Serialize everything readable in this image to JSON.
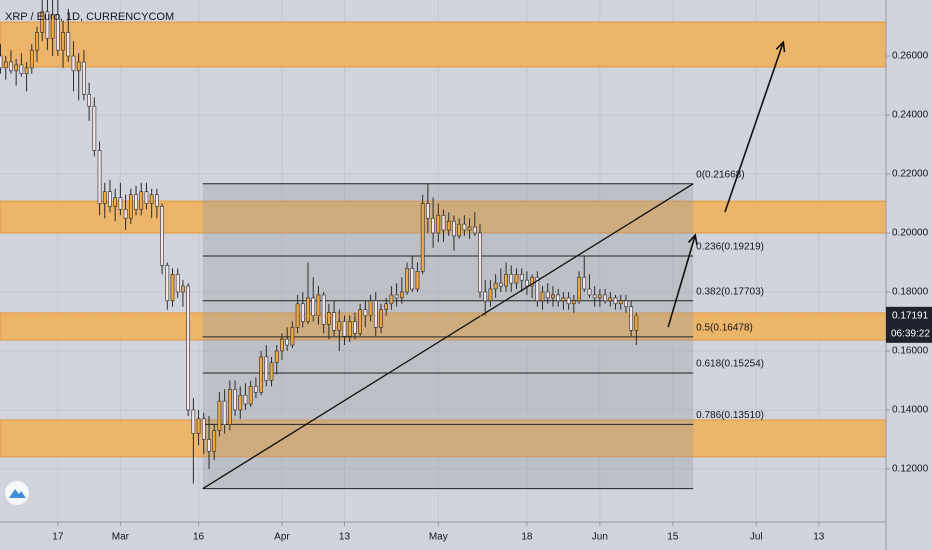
{
  "chart_data": {
    "type": "candlestick",
    "title": "XRP / Euro, 1D, CURRENCYCOM",
    "up_color": "#f2a93b",
    "down_color": "#f4e4ea",
    "wick_color": "#2b2b2b",
    "zone_color": "#f0b25e",
    "xlim": [
      -11.1,
      158.9
    ],
    "ylim": [
      0.102,
      0.279
    ],
    "xticks": [
      {
        "value": 0,
        "label": "17"
      },
      {
        "value": 12,
        "label": "Mar"
      },
      {
        "value": 27,
        "label": "16"
      },
      {
        "value": 43,
        "label": "Apr"
      },
      {
        "value": 55,
        "label": "13"
      },
      {
        "value": 73,
        "label": "May"
      },
      {
        "value": 90,
        "label": "18"
      },
      {
        "value": 104,
        "label": "Jun"
      },
      {
        "value": 118,
        "label": "15"
      },
      {
        "value": 134,
        "label": "Jul"
      },
      {
        "value": 146,
        "label": "13"
      }
    ],
    "yticks": [
      {
        "value": 0.12,
        "label": "0.12000"
      },
      {
        "value": 0.14,
        "label": "0.14000"
      },
      {
        "value": 0.16,
        "label": "0.16000"
      },
      {
        "value": 0.18,
        "label": "0.18000"
      },
      {
        "value": 0.2,
        "label": "0.20000"
      },
      {
        "value": 0.22,
        "label": "0.22000"
      },
      {
        "value": 0.24,
        "label": "0.24000"
      },
      {
        "value": 0.26,
        "label": "0.26000"
      }
    ],
    "grid": true,
    "x": [
      -11,
      -10,
      -9,
      -8,
      -7,
      -6,
      -5,
      -4,
      -3,
      -2,
      -1,
      0,
      1,
      2,
      3,
      4,
      5,
      6,
      7,
      8,
      9,
      10,
      11,
      12,
      13,
      14,
      15,
      16,
      17,
      18,
      19,
      20,
      21,
      22,
      23,
      24,
      25,
      26,
      27,
      28,
      29,
      30,
      31,
      32,
      33,
      34,
      35,
      36,
      37,
      38,
      39,
      40,
      41,
      42,
      43,
      44,
      45,
      46,
      47,
      48,
      49,
      50,
      51,
      52,
      53,
      54,
      55,
      56,
      57,
      58,
      59,
      60,
      61,
      62,
      63,
      64,
      65,
      66,
      67,
      68,
      69,
      70,
      71,
      72,
      73,
      74,
      75,
      76,
      77,
      78,
      79,
      80,
      81,
      82,
      83,
      84,
      85,
      86,
      87,
      88,
      89,
      90,
      91,
      92,
      93,
      94,
      95,
      96,
      97,
      98,
      99,
      100,
      101,
      102,
      103,
      104,
      105,
      106,
      107,
      108,
      109,
      110,
      111
    ],
    "ohlc": [
      [
        0.26,
        0.264,
        0.254,
        0.256
      ],
      [
        0.256,
        0.26,
        0.252,
        0.258
      ],
      [
        0.258,
        0.262,
        0.254,
        0.255
      ],
      [
        0.255,
        0.259,
        0.25,
        0.257
      ],
      [
        0.257,
        0.261,
        0.253,
        0.254
      ],
      [
        0.254,
        0.258,
        0.248,
        0.256
      ],
      [
        0.256,
        0.264,
        0.254,
        0.262
      ],
      [
        0.262,
        0.27,
        0.258,
        0.268
      ],
      [
        0.268,
        0.279,
        0.265,
        0.275
      ],
      [
        0.275,
        0.279,
        0.262,
        0.266
      ],
      [
        0.266,
        0.279,
        0.26,
        0.274
      ],
      [
        0.274,
        0.279,
        0.26,
        0.262
      ],
      [
        0.262,
        0.272,
        0.256,
        0.268
      ],
      [
        0.268,
        0.276,
        0.258,
        0.26
      ],
      [
        0.26,
        0.265,
        0.248,
        0.255
      ],
      [
        0.255,
        0.261,
        0.245,
        0.258
      ],
      [
        0.258,
        0.262,
        0.245,
        0.247
      ],
      [
        0.247,
        0.251,
        0.238,
        0.243
      ],
      [
        0.243,
        0.246,
        0.226,
        0.228
      ],
      [
        0.228,
        0.231,
        0.206,
        0.21
      ],
      [
        0.21,
        0.217,
        0.205,
        0.214
      ],
      [
        0.214,
        0.218,
        0.207,
        0.209
      ],
      [
        0.209,
        0.215,
        0.204,
        0.212
      ],
      [
        0.212,
        0.217,
        0.206,
        0.208
      ],
      [
        0.208,
        0.213,
        0.201,
        0.205
      ],
      [
        0.205,
        0.215,
        0.203,
        0.213
      ],
      [
        0.213,
        0.216,
        0.206,
        0.208
      ],
      [
        0.208,
        0.217,
        0.206,
        0.214
      ],
      [
        0.214,
        0.217,
        0.208,
        0.21
      ],
      [
        0.21,
        0.215,
        0.205,
        0.213
      ],
      [
        0.213,
        0.215,
        0.205,
        0.209
      ],
      [
        0.209,
        0.21,
        0.186,
        0.189
      ],
      [
        0.189,
        0.19,
        0.174,
        0.177
      ],
      [
        0.177,
        0.188,
        0.175,
        0.186
      ],
      [
        0.186,
        0.188,
        0.178,
        0.18
      ],
      [
        0.18,
        0.184,
        0.175,
        0.182
      ],
      [
        0.182,
        0.183,
        0.138,
        0.14
      ],
      [
        0.14,
        0.144,
        0.115,
        0.132
      ],
      [
        0.132,
        0.14,
        0.128,
        0.137
      ],
      [
        0.137,
        0.139,
        0.125,
        0.13
      ],
      [
        0.13,
        0.138,
        0.12,
        0.126
      ],
      [
        0.126,
        0.135,
        0.123,
        0.133
      ],
      [
        0.133,
        0.146,
        0.131,
        0.143
      ],
      [
        0.143,
        0.147,
        0.132,
        0.135
      ],
      [
        0.135,
        0.15,
        0.133,
        0.147
      ],
      [
        0.147,
        0.15,
        0.138,
        0.14
      ],
      [
        0.14,
        0.148,
        0.137,
        0.145
      ],
      [
        0.145,
        0.149,
        0.14,
        0.142
      ],
      [
        0.142,
        0.15,
        0.141,
        0.148
      ],
      [
        0.148,
        0.151,
        0.144,
        0.146
      ],
      [
        0.146,
        0.16,
        0.145,
        0.158
      ],
      [
        0.158,
        0.162,
        0.148,
        0.15
      ],
      [
        0.15,
        0.158,
        0.148,
        0.156
      ],
      [
        0.156,
        0.162,
        0.152,
        0.16
      ],
      [
        0.16,
        0.166,
        0.157,
        0.164
      ],
      [
        0.164,
        0.168,
        0.16,
        0.162
      ],
      [
        0.162,
        0.17,
        0.161,
        0.168
      ],
      [
        0.168,
        0.179,
        0.166,
        0.176
      ],
      [
        0.176,
        0.18,
        0.168,
        0.17
      ],
      [
        0.17,
        0.19,
        0.169,
        0.178
      ],
      [
        0.178,
        0.185,
        0.17,
        0.172
      ],
      [
        0.172,
        0.182,
        0.169,
        0.179
      ],
      [
        0.179,
        0.18,
        0.166,
        0.169
      ],
      [
        0.169,
        0.176,
        0.164,
        0.173
      ],
      [
        0.173,
        0.177,
        0.165,
        0.167
      ],
      [
        0.167,
        0.174,
        0.16,
        0.17
      ],
      [
        0.17,
        0.172,
        0.162,
        0.165
      ],
      [
        0.165,
        0.172,
        0.163,
        0.17
      ],
      [
        0.17,
        0.173,
        0.164,
        0.166
      ],
      [
        0.166,
        0.176,
        0.165,
        0.174
      ],
      [
        0.174,
        0.177,
        0.168,
        0.172
      ],
      [
        0.172,
        0.179,
        0.17,
        0.177
      ],
      [
        0.177,
        0.18,
        0.165,
        0.168
      ],
      [
        0.168,
        0.176,
        0.166,
        0.174
      ],
      [
        0.174,
        0.178,
        0.172,
        0.176
      ],
      [
        0.176,
        0.182,
        0.174,
        0.179
      ],
      [
        0.179,
        0.183,
        0.175,
        0.178
      ],
      [
        0.178,
        0.185,
        0.176,
        0.18
      ],
      [
        0.18,
        0.19,
        0.179,
        0.188
      ],
      [
        0.188,
        0.192,
        0.18,
        0.181
      ],
      [
        0.181,
        0.19,
        0.18,
        0.187
      ],
      [
        0.187,
        0.213,
        0.186,
        0.21
      ],
      [
        0.21,
        0.2167,
        0.2,
        0.205
      ],
      [
        0.205,
        0.212,
        0.195,
        0.2
      ],
      [
        0.2,
        0.21,
        0.197,
        0.206
      ],
      [
        0.206,
        0.208,
        0.197,
        0.201
      ],
      [
        0.201,
        0.207,
        0.199,
        0.204
      ],
      [
        0.204,
        0.206,
        0.194,
        0.199
      ],
      [
        0.199,
        0.205,
        0.198,
        0.203
      ],
      [
        0.203,
        0.206,
        0.199,
        0.201
      ],
      [
        0.201,
        0.205,
        0.198,
        0.202
      ],
      [
        0.202,
        0.207,
        0.199,
        0.2
      ],
      [
        0.2,
        0.203,
        0.178,
        0.18
      ],
      [
        0.18,
        0.184,
        0.172,
        0.177
      ],
      [
        0.177,
        0.184,
        0.175,
        0.181
      ],
      [
        0.181,
        0.186,
        0.178,
        0.183
      ],
      [
        0.183,
        0.188,
        0.18,
        0.182
      ],
      [
        0.182,
        0.19,
        0.18,
        0.186
      ],
      [
        0.186,
        0.189,
        0.18,
        0.183
      ],
      [
        0.183,
        0.188,
        0.181,
        0.186
      ],
      [
        0.186,
        0.188,
        0.18,
        0.184
      ],
      [
        0.184,
        0.187,
        0.179,
        0.182
      ],
      [
        0.182,
        0.186,
        0.178,
        0.185
      ],
      [
        0.185,
        0.187,
        0.175,
        0.177
      ],
      [
        0.177,
        0.182,
        0.174,
        0.18
      ],
      [
        0.18,
        0.183,
        0.176,
        0.178
      ],
      [
        0.178,
        0.182,
        0.175,
        0.179
      ],
      [
        0.179,
        0.181,
        0.175,
        0.177
      ],
      [
        0.177,
        0.18,
        0.174,
        0.178
      ],
      [
        0.178,
        0.18,
        0.174,
        0.176
      ],
      [
        0.176,
        0.179,
        0.173,
        0.177
      ],
      [
        0.177,
        0.187,
        0.176,
        0.185
      ],
      [
        0.185,
        0.192,
        0.18,
        0.181
      ],
      [
        0.181,
        0.186,
        0.178,
        0.179
      ],
      [
        0.179,
        0.182,
        0.175,
        0.178
      ],
      [
        0.178,
        0.181,
        0.175,
        0.179
      ],
      [
        0.179,
        0.181,
        0.176,
        0.177
      ],
      [
        0.177,
        0.18,
        0.175,
        0.178
      ],
      [
        0.178,
        0.179,
        0.174,
        0.176
      ],
      [
        0.176,
        0.179,
        0.174,
        0.177
      ],
      [
        0.177,
        0.179,
        0.173,
        0.175
      ],
      [
        0.175,
        0.177,
        0.165,
        0.167
      ],
      [
        0.167,
        0.173,
        0.162,
        0.17191
      ]
    ],
    "zones": [
      [
        0.2563,
        0.2715
      ],
      [
        0.2,
        0.2108
      ],
      [
        0.1637,
        0.1729
      ],
      [
        0.1241,
        0.1366
      ]
    ],
    "fib_x": [
      27.8,
      121.9
    ],
    "fib_low": 0.1133,
    "fib_levels": [
      {
        "value": 0.21668,
        "label": "0(0.21668)"
      },
      {
        "value": 0.19219,
        "label": "0.236(0.19219)"
      },
      {
        "value": 0.17703,
        "label": "0.382(0.17703)"
      },
      {
        "value": 0.16478,
        "label": "0.5(0.16478)"
      },
      {
        "value": 0.15254,
        "label": "0.618(0.15254)"
      },
      {
        "value": 0.1351,
        "label": "0.786(0.13510)"
      }
    ],
    "arrows": [
      [
        [
          117.1,
          0.1681
        ],
        [
          122.3,
          0.1993
        ]
      ],
      [
        [
          128.0,
          0.2071
        ],
        [
          139.2,
          0.2647
        ]
      ]
    ],
    "current_price": 0.17191,
    "countdown": "06:39:22"
  }
}
